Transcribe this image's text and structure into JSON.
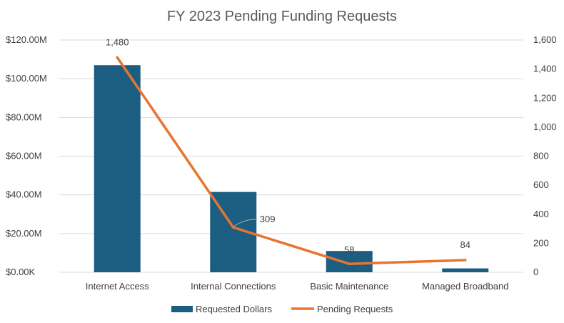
{
  "chart_data": {
    "type": "bar",
    "title": "FY 2023 Pending Funding Requests",
    "categories": [
      "Internet Access",
      "Internal Connections",
      "Basic Maintenance",
      "Managed Broadband"
    ],
    "series": [
      {
        "name": "Requested Dollars",
        "type": "bar",
        "axis": "left",
        "values": [
          107000000,
          41500000,
          11000000,
          2000000
        ],
        "color": "#1b5e82"
      },
      {
        "name": "Pending Requests",
        "type": "line",
        "axis": "right",
        "values": [
          1480,
          309,
          58,
          84
        ],
        "data_labels": [
          "1,480",
          "309",
          "58",
          "84"
        ],
        "color": "#e8742f"
      }
    ],
    "y_left": {
      "lim": [
        0,
        120000000
      ],
      "ticks": [
        0,
        20000000,
        40000000,
        60000000,
        80000000,
        100000000,
        120000000
      ],
      "tick_labels": [
        "$0.00K",
        "$20.00M",
        "$40.00M",
        "$60.00M",
        "$80.00M",
        "$100.00M",
        "$120.00M"
      ]
    },
    "y_right": {
      "lim": [
        0,
        1600
      ],
      "ticks": [
        0,
        200,
        400,
        600,
        800,
        1000,
        1200,
        1400,
        1600
      ],
      "tick_labels": [
        "0",
        "200",
        "400",
        "600",
        "800",
        "1,000",
        "1,200",
        "1,400",
        "1,600"
      ]
    },
    "grid": true,
    "grid_color": "#d9d9d9",
    "legend_position": "bottom"
  }
}
